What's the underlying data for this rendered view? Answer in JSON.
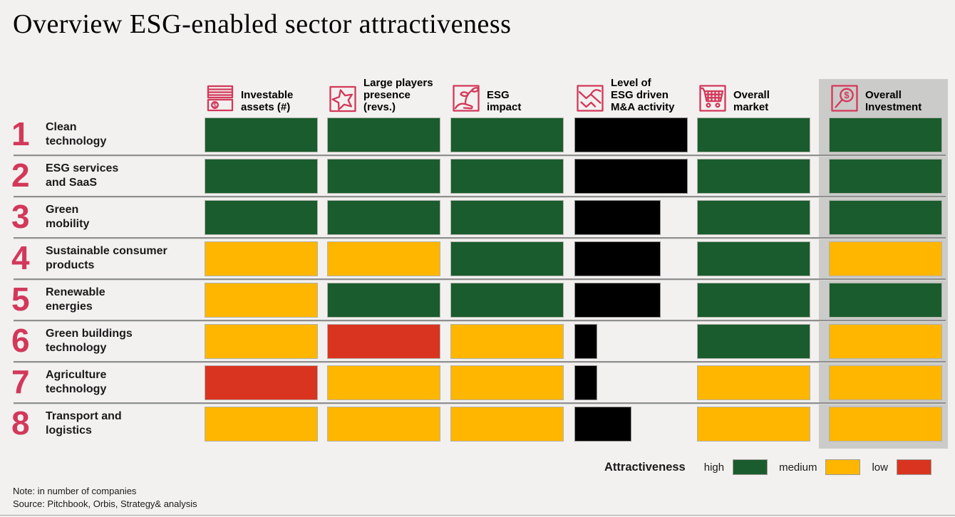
{
  "title": "Overview ESG-enabled sector attractiveness",
  "columns": [
    {
      "key": "investable_assets",
      "label": "Investable\nassets (#)",
      "icon": "banknotes-icon"
    },
    {
      "key": "large_players",
      "label": "Large players\npresence\n(revs.)",
      "icon": "star-icon"
    },
    {
      "key": "esg_impact",
      "label": "ESG\nimpact",
      "icon": "sprout-hand-icon"
    },
    {
      "key": "ma_activity",
      "label": "Level of\nESG driven\nM&A activity",
      "icon": "handshake-icon"
    },
    {
      "key": "overall_market",
      "label": "Overall\nmarket",
      "icon": "cart-icon"
    },
    {
      "key": "overall_investment",
      "label": "Overall\nInvestment",
      "icon": "magnifier-dollar-icon",
      "highlighted": true
    }
  ],
  "rows": [
    {
      "rank": "1",
      "sector": "Clean\ntechnology",
      "investable_assets": "high",
      "large_players": "high",
      "esg_impact": "high",
      "ma_activity_level": 1.0,
      "overall_market": "high",
      "overall_investment": "high"
    },
    {
      "rank": "2",
      "sector": "ESG services\nand SaaS",
      "investable_assets": "high",
      "large_players": "high",
      "esg_impact": "high",
      "ma_activity_level": 1.0,
      "overall_market": "high",
      "overall_investment": "high"
    },
    {
      "rank": "3",
      "sector": "Green\nmobility",
      "investable_assets": "high",
      "large_players": "high",
      "esg_impact": "high",
      "ma_activity_level": 0.76,
      "overall_market": "high",
      "overall_investment": "high"
    },
    {
      "rank": "4",
      "sector": "Sustainable consumer\nproducts",
      "investable_assets": "medium",
      "large_players": "medium",
      "esg_impact": "high",
      "ma_activity_level": 0.76,
      "overall_market": "high",
      "overall_investment": "medium"
    },
    {
      "rank": "5",
      "sector": "Renewable\nenergies",
      "investable_assets": "medium",
      "large_players": "high",
      "esg_impact": "high",
      "ma_activity_level": 0.76,
      "overall_market": "high",
      "overall_investment": "high"
    },
    {
      "rank": "6",
      "sector": "Green buildings\ntechnology",
      "investable_assets": "medium",
      "large_players": "low",
      "esg_impact": "medium",
      "ma_activity_level": 0.2,
      "overall_market": "high",
      "overall_investment": "medium"
    },
    {
      "rank": "7",
      "sector": "Agriculture\ntechnology",
      "investable_assets": "low",
      "large_players": "medium",
      "esg_impact": "medium",
      "ma_activity_level": 0.2,
      "overall_market": "medium",
      "overall_investment": "medium"
    },
    {
      "rank": "8",
      "sector": "Transport and\nlogistics",
      "investable_assets": "medium",
      "large_players": "medium",
      "esg_impact": "medium",
      "ma_activity_level": 0.5,
      "overall_market": "medium",
      "overall_investment": "medium"
    }
  ],
  "legend": {
    "title": "Attractiveness",
    "items": [
      {
        "label": "high",
        "level": "high"
      },
      {
        "label": "medium",
        "level": "medium"
      },
      {
        "label": "low",
        "level": "low"
      }
    ]
  },
  "colors": {
    "high": "#1a5c2d",
    "medium": "#ffb600",
    "low": "#d93420",
    "ma_bar": "#000000",
    "accent": "#d3385a",
    "highlight_panel": "#cbcbc9",
    "background": "#f2f1ef"
  },
  "note": "Note: in number of companies",
  "source": "Source: Pitchbook, Orbis, Strategy& analysis",
  "chart_data": {
    "type": "heatmap",
    "title": "Overview ESG-enabled sector attractiveness",
    "columns": [
      "Investable assets (#)",
      "Large players presence (revs.)",
      "ESG impact",
      "Level of ESG driven M&A activity",
      "Overall market",
      "Overall Investment"
    ],
    "rows": [
      "Clean technology",
      "ESG services and SaaS",
      "Green mobility",
      "Sustainable consumer products",
      "Renewable energies",
      "Green buildings technology",
      "Agriculture technology",
      "Transport and logistics"
    ],
    "values": [
      [
        "high",
        "high",
        "high",
        1.0,
        "high",
        "high"
      ],
      [
        "high",
        "high",
        "high",
        1.0,
        "high",
        "high"
      ],
      [
        "high",
        "high",
        "high",
        0.76,
        "high",
        "high"
      ],
      [
        "medium",
        "medium",
        "high",
        0.76,
        "high",
        "medium"
      ],
      [
        "medium",
        "high",
        "high",
        0.76,
        "high",
        "high"
      ],
      [
        "medium",
        "low",
        "medium",
        0.2,
        "high",
        "medium"
      ],
      [
        "low",
        "medium",
        "medium",
        0.2,
        "medium",
        "medium"
      ],
      [
        "medium",
        "medium",
        "medium",
        0.5,
        "medium",
        "medium"
      ]
    ],
    "value_note": "Numeric values in 'Level of ESG driven M&A activity' column are black bar widths as fraction of full cell width",
    "legend": {
      "title": "Attractiveness",
      "high": "dark green",
      "medium": "amber",
      "low": "red"
    }
  }
}
